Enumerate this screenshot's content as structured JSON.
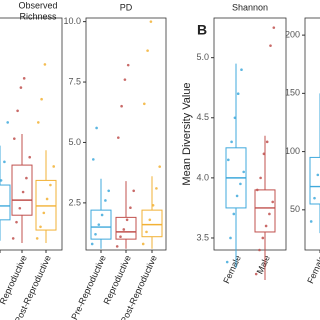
{
  "chart_data": [
    {
      "type": "box",
      "title_lines": [
        "Observed",
        "Richness"
      ],
      "categories": [
        null,
        "Reproductive",
        "Post-Reproductive"
      ],
      "colors": [
        "#3fa9dc",
        "#c0504d",
        "#f2b134"
      ],
      "ylim": [
        0,
        100
      ],
      "yticks": [],
      "boxes": [
        {
          "min": 4,
          "q1": 13,
          "median": 19,
          "q3": 28,
          "max": 45
        },
        {
          "min": 3,
          "q1": 15,
          "median": 21.5,
          "q3": 36.6,
          "max": 50
        },
        {
          "min": 3,
          "q1": 8.6,
          "median": 19,
          "q3": 30,
          "max": 43
        }
      ],
      "points": [
        [
          10,
          15,
          22,
          30,
          38,
          55,
          60
        ],
        [
          5,
          12,
          18,
          25,
          31,
          40,
          48,
          60,
          70,
          74
        ],
        [
          5,
          10,
          16,
          22,
          28,
          36,
          55,
          65,
          80
        ]
      ]
    },
    {
      "type": "box",
      "title": "PD",
      "categories": [
        "Pre-Reproductive",
        "Reproductive",
        "Post-Reproductive"
      ],
      "colors": [
        "#3fa9dc",
        "#c0504d",
        "#f2b134"
      ],
      "ylim": [
        0.55,
        10.15
      ],
      "yticks": [
        {
          "value": 2.5,
          "label": "2.5"
        },
        {
          "value": 5,
          "label": "5.0"
        },
        {
          "value": 7.5,
          "label": "7.5"
        },
        {
          "value": 10,
          "label": "10.0"
        }
      ],
      "boxes": [
        {
          "min": 0.6,
          "q1": 1.0,
          "median": 1.5,
          "q3": 2.2,
          "max": 3.5
        },
        {
          "min": 0.6,
          "q1": 1.0,
          "median": 1.3,
          "q3": 1.9,
          "max": 3.4
        },
        {
          "min": 0.6,
          "q1": 1.1,
          "median": 1.6,
          "q3": 2.2,
          "max": 3.6
        }
      ],
      "points": [
        [
          0.8,
          1.2,
          1.6,
          2.0,
          2.6,
          3.0,
          4.3,
          5.6
        ],
        [
          0.7,
          1.1,
          1.4,
          1.8,
          2.3,
          3.0,
          5.2,
          6.5,
          7.6,
          8.2
        ],
        [
          0.8,
          1.3,
          1.8,
          2.4,
          3.1,
          4.0,
          6.6,
          8.8,
          10.0
        ]
      ]
    },
    {
      "type": "box",
      "panel_label": "B",
      "title": "Shannon",
      "ylabel": "Mean Diversity Value",
      "categories": [
        "Female",
        "Male"
      ],
      "colors": [
        "#3fa9dc",
        "#c0504d"
      ],
      "ylim": [
        3.4,
        5.33
      ],
      "yticks": [
        {
          "value": 3.5,
          "label": "3.5"
        },
        {
          "value": 4,
          "label": "4.0"
        },
        {
          "value": 4.5,
          "label": "4.5"
        },
        {
          "value": 5,
          "label": "5.0"
        }
      ],
      "boxes": [
        {
          "min": 3.25,
          "q1": 3.75,
          "median": 4.0,
          "q3": 4.25,
          "max": 4.95
        },
        {
          "min": 3.15,
          "q1": 3.55,
          "median": 3.75,
          "q3": 3.9,
          "max": 4.35
        }
      ],
      "points": [
        [
          3.3,
          3.5,
          3.7,
          3.85,
          3.95,
          4.05,
          4.15,
          4.3,
          4.5,
          4.7,
          4.9
        ],
        [
          3.2,
          3.4,
          3.5,
          3.6,
          3.7,
          3.8,
          3.9,
          4.0,
          4.2,
          4.3,
          5.1,
          5.25
        ]
      ]
    },
    {
      "type": "box",
      "categories": [
        "Female"
      ],
      "colors": [
        "#3fa9dc"
      ],
      "ylim": [
        15.5,
        214.7
      ],
      "yticks": [
        50,
        100,
        150,
        200
      ],
      "boxes": [
        {
          "min": 30,
          "q1": 55,
          "median": 70,
          "q3": 95,
          "max": 150
        }
      ],
      "points": [
        [
          40,
          60,
          80,
          120,
          140
        ]
      ]
    }
  ]
}
